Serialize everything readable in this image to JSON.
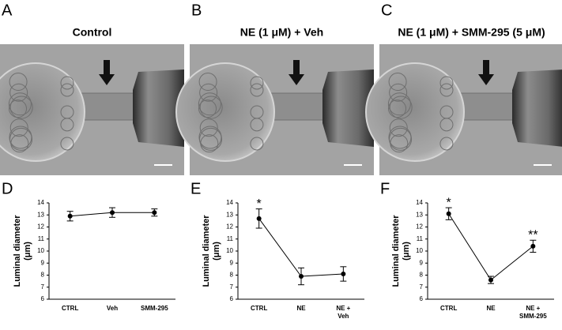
{
  "image_panels": [
    {
      "letter": "A",
      "title": "Control"
    },
    {
      "letter": "B",
      "title": "NE (1 μM) + Veh"
    },
    {
      "letter": "C",
      "title": "NE (1 μM) + SMM-295 (5 μM)"
    }
  ],
  "chart_data": [
    {
      "type": "line",
      "letter": "D",
      "ylabel": [
        "Luminal diameter",
        "(μm)"
      ],
      "categories": [
        [
          "CTRL"
        ],
        [
          "Veh"
        ],
        [
          "SMM-295"
        ]
      ],
      "series": [
        {
          "color": "#000000",
          "values": [
            12.9,
            13.2,
            13.2
          ],
          "errors": [
            0.4,
            0.4,
            0.3
          ]
        }
      ],
      "ylim": [
        6,
        14
      ],
      "yticks": [
        6,
        7,
        8,
        9,
        10,
        11,
        12,
        13,
        14
      ],
      "annotations": []
    },
    {
      "type": "line",
      "letter": "E",
      "ylabel": [
        "Luminal diameter",
        "(μm)"
      ],
      "categories": [
        [
          "CTRL"
        ],
        [
          "NE"
        ],
        [
          "NE +",
          "Veh"
        ]
      ],
      "series": [
        {
          "color": "#000000",
          "values": [
            12.7,
            7.9,
            8.1
          ],
          "errors": [
            0.8,
            0.7,
            0.6
          ]
        }
      ],
      "ylim": [
        6,
        14
      ],
      "yticks": [
        6,
        7,
        8,
        9,
        10,
        11,
        12,
        13,
        14
      ],
      "annotations": [
        {
          "text": "*",
          "index": 0
        }
      ]
    },
    {
      "type": "line",
      "letter": "F",
      "ylabel": [
        "Luminal diameter",
        "(μm)"
      ],
      "categories": [
        [
          "CTRL"
        ],
        [
          "NE"
        ],
        [
          "NE +",
          "SMM-295"
        ]
      ],
      "series": [
        {
          "color": "#000000",
          "values": [
            13.1,
            7.6,
            10.4
          ],
          "errors": [
            0.5,
            0.3,
            0.5
          ]
        }
      ],
      "ylim": [
        6,
        14
      ],
      "yticks": [
        6,
        7,
        8,
        9,
        10,
        11,
        12,
        13,
        14
      ],
      "annotations": [
        {
          "text": "*",
          "index": 0
        },
        {
          "text": "**",
          "index": 2
        }
      ]
    }
  ]
}
